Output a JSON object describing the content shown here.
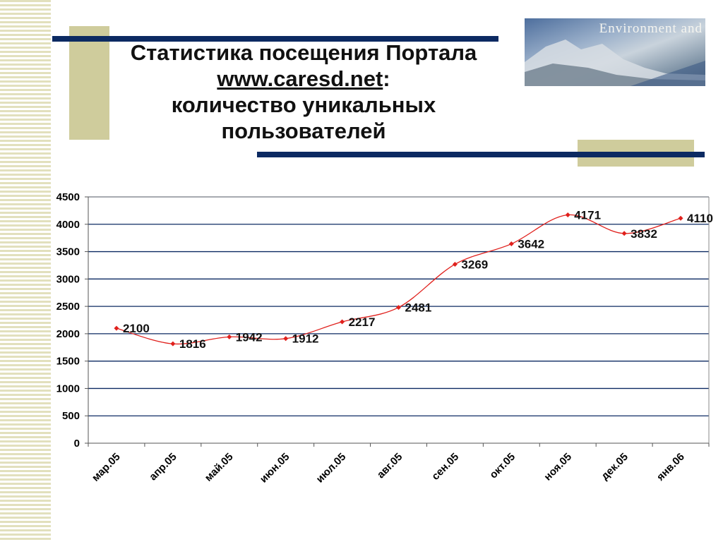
{
  "header": {
    "title_line1": "Статистика посещения Портала",
    "title_link": "www.caresd.net",
    "title_colon": ":",
    "title_line3": "количество уникальных",
    "title_line4": "пользователей"
  },
  "banner": {
    "text": "Environment and"
  },
  "colors": {
    "line": "#e0201c",
    "marker": "#e0201c",
    "grid": "#0c2a62",
    "accent_bar": "#0c2a62",
    "deco": "#cfcc9c"
  },
  "chart_data": {
    "type": "line",
    "categories": [
      "мар.05",
      "апр.05",
      "май.05",
      "июн.05",
      "июл.05",
      "авг.05",
      "сен.05",
      "окт.05",
      "ноя.05",
      "дек.05",
      "янв.06"
    ],
    "series": [
      {
        "values": [
          2100,
          1816,
          1942,
          1912,
          2217,
          2481,
          3269,
          3642,
          4171,
          3832,
          4110
        ]
      }
    ],
    "data_labels": [
      "2100",
      "1816",
      "1942",
      "1912",
      "2217",
      "2481",
      "3269",
      "3642",
      "4171",
      "3832",
      "4110"
    ],
    "y_ticks": [
      0,
      500,
      1000,
      1500,
      2000,
      2500,
      3000,
      3500,
      4000,
      4500
    ],
    "ylim": [
      0,
      4500
    ],
    "grid": true,
    "legend": "none",
    "smooth": true
  }
}
